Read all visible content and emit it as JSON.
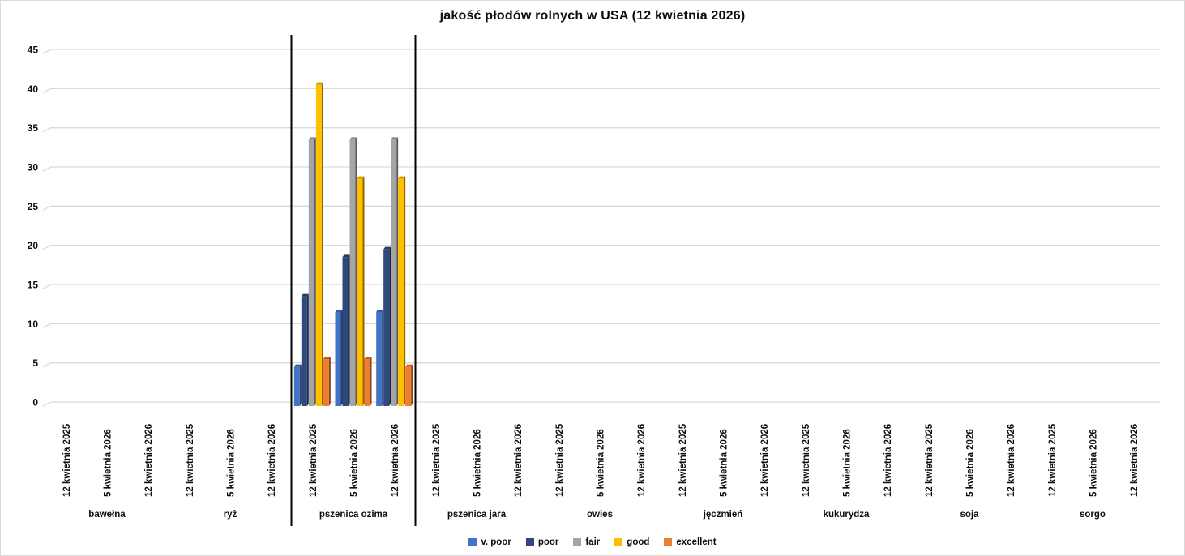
{
  "chart_data": {
    "type": "bar",
    "style": "3d-clustered-column",
    "title": "jakość płodów rolnych w USA (12 kwietnia 2026)",
    "xlabel": "",
    "ylabel": "",
    "ylim": [
      0,
      45
    ],
    "y_ticks": [
      0,
      5,
      10,
      15,
      20,
      25,
      30,
      35,
      40,
      45
    ],
    "grid": true,
    "grid_color": "#d9d9d9",
    "legend_position": "bottom",
    "categories": [
      "bawełna",
      "ryż",
      "pszenica ozima",
      "pszenica jara",
      "owies",
      "jęczmień",
      "kukurydza",
      "soja",
      "sorgo"
    ],
    "date_labels": [
      "12 kwietnia 2025",
      "5 kwietnia 2026",
      "12 kwietnia 2026"
    ],
    "series": [
      {
        "name": "v. poor",
        "color": "#4472C4"
      },
      {
        "name": "poor",
        "color": "#2E4A7D"
      },
      {
        "name": "fair",
        "color": "#A5A5A5"
      },
      {
        "name": "good",
        "color": "#FFC000"
      },
      {
        "name": "excellent",
        "color": "#ED7D31"
      }
    ],
    "data": [
      {
        "category": "pszenica ozima",
        "groups": [
          {
            "date": "12 kwietnia 2025",
            "values": [
              5,
              14,
              34,
              41,
              6
            ]
          },
          {
            "date": "5 kwietnia 2026",
            "values": [
              12,
              19,
              34,
              29,
              6
            ]
          },
          {
            "date": "12 kwietnia 2026",
            "values": [
              12,
              20,
              34,
              29,
              5
            ]
          }
        ]
      }
    ],
    "highlight": {
      "category": "pszenica ozima",
      "line_color": "#000000"
    }
  }
}
